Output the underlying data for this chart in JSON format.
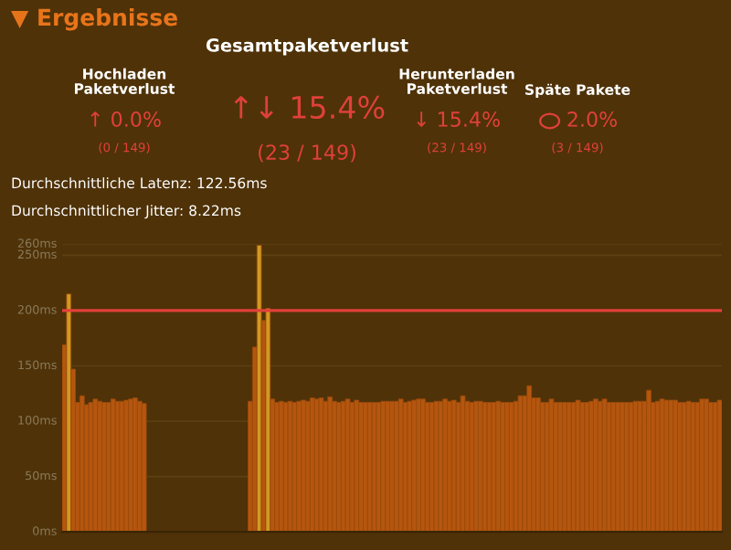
{
  "chart_data": {
    "type": "bar",
    "title": "▼ Ergebnisse",
    "annotations": [
      "Gesamtpaketverlust",
      "Hochladen\nPaketverlust",
      "↑ 0.0%",
      "(0 / 149)",
      "↑↓ 15.4%",
      "(23 / 149)",
      "Herunterladen\nPaketverlust",
      "↓ 15.4%",
      "(23 / 149)",
      "Späte Pakete",
      "2.0%",
      "(3 / 149)",
      "Durchschnittliche Latenz: 122.56ms",
      "Durchschnittlicher Jitter: 8.22ms"
    ],
    "categories": [
      null,
      null,
      null,
      null,
      null,
      null,
      null,
      null,
      null,
      null,
      null,
      null,
      null,
      null,
      null,
      null,
      null,
      null,
      null,
      null,
      null,
      null,
      null,
      null,
      null,
      null,
      null,
      null,
      null,
      null,
      null,
      null,
      null,
      null,
      null,
      null,
      null,
      null,
      null,
      null,
      null,
      null,
      null,
      null,
      null,
      null,
      null,
      null,
      null,
      null,
      null,
      null,
      null,
      null,
      null,
      null,
      null,
      null,
      null,
      null,
      null,
      null,
      null,
      null,
      null,
      null,
      null,
      null,
      null,
      null,
      null,
      null,
      null,
      null,
      null,
      null,
      null,
      null,
      null,
      null,
      null,
      null,
      null,
      null,
      null,
      null,
      null,
      null,
      null,
      null,
      null,
      null,
      null,
      null,
      null,
      null,
      null,
      null,
      null,
      null,
      null,
      null,
      null,
      null,
      null,
      null,
      null,
      null,
      null,
      null,
      null,
      null,
      null,
      null,
      null,
      null,
      null,
      null,
      null,
      null,
      null,
      null,
      null,
      null,
      null,
      null,
      null,
      null,
      null,
      null,
      null,
      null,
      null,
      null,
      null,
      null,
      null,
      null,
      null,
      null,
      null,
      null,
      null,
      null,
      null,
      null,
      null,
      null,
      null
    ],
    "values": [
      169,
      215,
      147,
      117,
      123,
      115,
      117,
      120,
      118,
      117,
      117,
      120,
      118,
      118,
      119,
      120,
      121,
      118,
      116,
      null,
      null,
      null,
      null,
      null,
      null,
      null,
      null,
      null,
      null,
      null,
      null,
      null,
      null,
      null,
      null,
      null,
      null,
      null,
      null,
      null,
      null,
      null,
      118,
      167,
      259,
      191,
      202,
      120,
      117,
      118,
      117,
      118,
      117,
      118,
      119,
      118,
      121,
      120,
      121,
      118,
      122,
      118,
      117,
      118,
      120,
      117,
      119,
      117,
      117,
      117,
      117,
      117,
      118,
      118,
      118,
      118,
      120,
      117,
      118,
      119,
      120,
      120,
      117,
      117,
      118,
      118,
      120,
      118,
      119,
      117,
      123,
      118,
      117,
      118,
      118,
      117,
      117,
      117,
      118,
      117,
      117,
      117,
      118,
      123,
      123,
      132,
      121,
      121,
      117,
      117,
      120,
      117,
      117,
      117,
      117,
      117,
      119,
      117,
      117,
      118,
      120,
      118,
      120,
      117,
      117,
      117,
      117,
      117,
      117,
      118,
      118,
      118,
      128,
      117,
      118,
      120,
      119,
      119,
      119,
      117,
      117,
      118,
      117,
      117,
      120,
      120,
      117,
      117,
      119
    ],
    "colors": [
      "#b5560f",
      "#d09a20",
      "#b5560f",
      "#b5560f",
      "#b5560f",
      "#b5560f",
      "#b5560f",
      "#b5560f",
      "#b5560f",
      "#b5560f",
      "#b5560f",
      "#b5560f",
      "#b5560f",
      "#b5560f",
      "#b5560f",
      "#b5560f",
      "#b5560f",
      "#b5560f",
      "#b5560f",
      "#b5560f",
      "#b5560f",
      "#b5560f",
      "#b5560f",
      "#b5560f",
      "#b5560f",
      "#b5560f",
      "#b5560f",
      "#b5560f",
      "#b5560f",
      "#b5560f",
      "#b5560f",
      "#b5560f",
      "#b5560f",
      "#b5560f",
      "#b5560f",
      "#b5560f",
      "#b5560f",
      "#b5560f",
      "#b5560f",
      "#b5560f",
      "#b5560f",
      "#b5560f",
      "#b5560f",
      "#b5560f",
      "#d09a20",
      "#b5560f",
      "#d09a20",
      "#b5560f",
      "#b5560f",
      "#b5560f",
      "#b5560f",
      "#b5560f",
      "#b5560f",
      "#b5560f",
      "#b5560f",
      "#b5560f",
      "#b5560f",
      "#b5560f",
      "#b5560f",
      "#b5560f",
      "#b5560f",
      "#b5560f",
      "#b5560f",
      "#b5560f",
      "#b5560f",
      "#b5560f",
      "#b5560f",
      "#b5560f",
      "#b5560f",
      "#b5560f",
      "#b5560f",
      "#b5560f",
      "#b5560f",
      "#b5560f",
      "#b5560f",
      "#b5560f",
      "#b5560f",
      "#b5560f",
      "#b5560f",
      "#b5560f",
      "#b5560f",
      "#b5560f",
      "#b5560f",
      "#b5560f",
      "#b5560f",
      "#b5560f",
      "#b5560f",
      "#b5560f",
      "#b5560f",
      "#b5560f",
      "#b5560f",
      "#b5560f",
      "#b5560f",
      "#b5560f",
      "#b5560f",
      "#b5560f",
      "#b5560f",
      "#b5560f",
      "#b5560f",
      "#b5560f",
      "#b5560f",
      "#b5560f",
      "#b5560f",
      "#b5560f",
      "#b5560f",
      "#b5560f",
      "#b5560f",
      "#b5560f",
      "#b5560f",
      "#b5560f",
      "#b5560f",
      "#b5560f",
      "#b5560f",
      "#b5560f",
      "#b5560f",
      "#b5560f",
      "#b5560f",
      "#b5560f",
      "#b5560f",
      "#b5560f",
      "#b5560f",
      "#b5560f",
      "#b5560f",
      "#b5560f",
      "#b5560f",
      "#b5560f",
      "#b5560f",
      "#b5560f",
      "#b5560f",
      "#b5560f",
      "#b5560f",
      "#b5560f",
      "#b5560f",
      "#b5560f",
      "#b5560f",
      "#b5560f",
      "#b5560f",
      "#b5560f",
      "#b5560f",
      "#b5560f",
      "#b5560f",
      "#b5560f",
      "#b5560f",
      "#b5560f",
      "#b5560f",
      "#b5560f",
      "#b5560f",
      "#b5560f",
      "#b5560f"
    ],
    "ylim": [
      0,
      260
    ],
    "yticks": [
      {
        "value": 0,
        "label": "0ms"
      },
      {
        "value": 50,
        "label": "50ms"
      },
      {
        "value": 100,
        "label": "100ms"
      },
      {
        "value": 150,
        "label": "150ms"
      },
      {
        "value": 200,
        "label": "200ms"
      },
      {
        "value": 250,
        "label": "250ms"
      },
      {
        "value": 260,
        "label": "260ms"
      }
    ],
    "ref_lines": [
      {
        "axis": "y",
        "value": 200,
        "label": null,
        "color": "#e0403a"
      }
    ],
    "grid": "y"
  }
}
